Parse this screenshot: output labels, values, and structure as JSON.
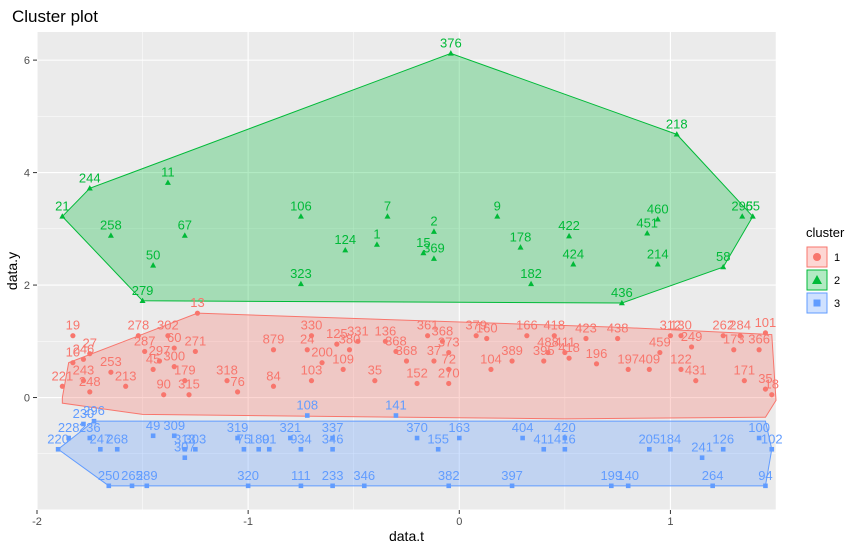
{
  "chart_data": {
    "type": "scatter",
    "title": "Cluster plot",
    "xlabel": "data.t",
    "ylabel": "data.y",
    "xlim": [
      -2.0,
      1.5
    ],
    "ylim": [
      -2.0,
      6.5
    ],
    "x_ticks": [
      -2,
      -1,
      0,
      1
    ],
    "y_ticks": [
      0,
      2,
      4,
      6
    ],
    "grid": true,
    "legend": {
      "title": "cluster",
      "position": "right",
      "entries": [
        "1",
        "2",
        "3"
      ]
    },
    "colors": {
      "1": "#f8766d",
      "2": "#00ba38",
      "3": "#619cff",
      "panel": "#ebebeb",
      "grid": "#ffffff"
    },
    "series": [
      {
        "name": "1",
        "shape": "circle",
        "hull": [
          [
            -1.88,
            0.0
          ],
          [
            -1.85,
            0.62
          ],
          [
            -1.24,
            1.5
          ],
          [
            0.75,
            1.25
          ],
          [
            1.48,
            1.12
          ],
          [
            1.5,
            -0.05
          ],
          [
            1.45,
            -0.35
          ],
          [
            0.5,
            -0.38
          ],
          [
            -1.5,
            -0.3
          ],
          [
            -1.88,
            -0.1
          ]
        ],
        "points": [
          {
            "x": -1.83,
            "y": 1.1,
            "label": "19"
          },
          {
            "x": -1.83,
            "y": 0.62,
            "label": "10"
          },
          {
            "x": -1.75,
            "y": 0.78,
            "label": "27"
          },
          {
            "x": -1.78,
            "y": 0.68,
            "label": "246"
          },
          {
            "x": -1.88,
            "y": 0.2,
            "label": "221"
          },
          {
            "x": -1.78,
            "y": 0.3,
            "label": "243"
          },
          {
            "x": -1.75,
            "y": 0.1,
            "label": "248"
          },
          {
            "x": -1.65,
            "y": 0.45,
            "label": "253"
          },
          {
            "x": -1.58,
            "y": 0.2,
            "label": "213"
          },
          {
            "x": -1.52,
            "y": 1.1,
            "label": "278"
          },
          {
            "x": -1.38,
            "y": 1.1,
            "label": "302"
          },
          {
            "x": -1.24,
            "y": 1.5,
            "label": "13"
          },
          {
            "x": -1.49,
            "y": 0.82,
            "label": "287"
          },
          {
            "x": -1.35,
            "y": 0.88,
            "label": "60"
          },
          {
            "x": -1.45,
            "y": 0.5,
            "label": "45"
          },
          {
            "x": -1.35,
            "y": 0.55,
            "label": "300"
          },
          {
            "x": -1.42,
            "y": 0.65,
            "label": "297"
          },
          {
            "x": -1.25,
            "y": 0.82,
            "label": "271"
          },
          {
            "x": -1.3,
            "y": 0.3,
            "label": "179"
          },
          {
            "x": -1.4,
            "y": 0.05,
            "label": "90"
          },
          {
            "x": -1.28,
            "y": 0.05,
            "label": "315"
          },
          {
            "x": -1.1,
            "y": 0.3,
            "label": "318"
          },
          {
            "x": -1.05,
            "y": 0.1,
            "label": "76"
          },
          {
            "x": -0.88,
            "y": 0.85,
            "label": "879"
          },
          {
            "x": -0.88,
            "y": 0.2,
            "label": "84"
          },
          {
            "x": -0.7,
            "y": 1.1,
            "label": "330"
          },
          {
            "x": -0.72,
            "y": 0.85,
            "label": "24"
          },
          {
            "x": -0.58,
            "y": 0.95,
            "label": "125"
          },
          {
            "x": -0.52,
            "y": 0.85,
            "label": "380"
          },
          {
            "x": -0.48,
            "y": 1.0,
            "label": "331"
          },
          {
            "x": -0.65,
            "y": 0.62,
            "label": "200"
          },
          {
            "x": -0.55,
            "y": 0.5,
            "label": "109"
          },
          {
            "x": -0.7,
            "y": 0.3,
            "label": "103"
          },
          {
            "x": -0.4,
            "y": 0.3,
            "label": "35"
          },
          {
            "x": -0.3,
            "y": 0.82,
            "label": "368"
          },
          {
            "x": -0.35,
            "y": 1.0,
            "label": "136"
          },
          {
            "x": -0.25,
            "y": 0.65,
            "label": "368"
          },
          {
            "x": -0.15,
            "y": 1.1,
            "label": "361"
          },
          {
            "x": -0.08,
            "y": 1.0,
            "label": "368"
          },
          {
            "x": -0.05,
            "y": 0.8,
            "label": "373"
          },
          {
            "x": -0.12,
            "y": 0.65,
            "label": "37"
          },
          {
            "x": -0.05,
            "y": 0.5,
            "label": "72"
          },
          {
            "x": -0.2,
            "y": 0.25,
            "label": "152"
          },
          {
            "x": -0.05,
            "y": 0.25,
            "label": "270"
          },
          {
            "x": 0.08,
            "y": 1.1,
            "label": "379"
          },
          {
            "x": 0.13,
            "y": 1.05,
            "label": "160"
          },
          {
            "x": 0.32,
            "y": 1.1,
            "label": "166"
          },
          {
            "x": 0.15,
            "y": 0.5,
            "label": "104"
          },
          {
            "x": 0.25,
            "y": 0.65,
            "label": "389"
          },
          {
            "x": 0.4,
            "y": 0.65,
            "label": "395"
          },
          {
            "x": 0.42,
            "y": 0.8,
            "label": "488"
          },
          {
            "x": 0.5,
            "y": 0.8,
            "label": "411"
          },
          {
            "x": 0.52,
            "y": 0.7,
            "label": "418"
          },
          {
            "x": 0.45,
            "y": 1.1,
            "label": "418"
          },
          {
            "x": 0.6,
            "y": 1.05,
            "label": "423"
          },
          {
            "x": 0.65,
            "y": 0.6,
            "label": "196"
          },
          {
            "x": 0.75,
            "y": 1.05,
            "label": "438"
          },
          {
            "x": 0.8,
            "y": 0.5,
            "label": "197"
          },
          {
            "x": 0.9,
            "y": 0.5,
            "label": "409"
          },
          {
            "x": 0.95,
            "y": 0.8,
            "label": "459"
          },
          {
            "x": 1.0,
            "y": 1.1,
            "label": "312"
          },
          {
            "x": 1.05,
            "y": 1.1,
            "label": "130"
          },
          {
            "x": 1.1,
            "y": 0.9,
            "label": "249"
          },
          {
            "x": 1.05,
            "y": 0.5,
            "label": "122"
          },
          {
            "x": 1.12,
            "y": 0.3,
            "label": "431"
          },
          {
            "x": 1.25,
            "y": 1.1,
            "label": "262"
          },
          {
            "x": 1.33,
            "y": 1.1,
            "label": "284"
          },
          {
            "x": 1.45,
            "y": 1.15,
            "label": "101"
          },
          {
            "x": 1.3,
            "y": 0.85,
            "label": "173"
          },
          {
            "x": 1.42,
            "y": 0.85,
            "label": "366"
          },
          {
            "x": 1.35,
            "y": 0.3,
            "label": "171"
          },
          {
            "x": 1.45,
            "y": 0.15,
            "label": "35"
          },
          {
            "x": 1.48,
            "y": 0.05,
            "label": "18"
          }
        ]
      },
      {
        "name": "2",
        "shape": "triangle",
        "hull": [
          [
            -1.88,
            3.22
          ],
          [
            -1.75,
            3.72
          ],
          [
            -0.04,
            6.12
          ],
          [
            1.03,
            4.68
          ],
          [
            1.39,
            3.22
          ],
          [
            1.25,
            2.32
          ],
          [
            0.77,
            1.68
          ],
          [
            -1.5,
            1.72
          ]
        ],
        "points": [
          {
            "x": -0.04,
            "y": 6.12,
            "label": "376"
          },
          {
            "x": 1.03,
            "y": 4.68,
            "label": "218"
          },
          {
            "x": -1.75,
            "y": 3.72,
            "label": "244"
          },
          {
            "x": -1.38,
            "y": 3.82,
            "label": "11"
          },
          {
            "x": -1.88,
            "y": 3.22,
            "label": "21"
          },
          {
            "x": -1.65,
            "y": 2.88,
            "label": "258"
          },
          {
            "x": -1.3,
            "y": 2.88,
            "label": "67"
          },
          {
            "x": -1.45,
            "y": 2.35,
            "label": "50"
          },
          {
            "x": -1.5,
            "y": 1.72,
            "label": "279"
          },
          {
            "x": -0.75,
            "y": 3.22,
            "label": "106"
          },
          {
            "x": -0.34,
            "y": 3.22,
            "label": "7"
          },
          {
            "x": -0.54,
            "y": 2.62,
            "label": "124"
          },
          {
            "x": -0.39,
            "y": 2.72,
            "label": "1"
          },
          {
            "x": -0.75,
            "y": 2.02,
            "label": "323"
          },
          {
            "x": -0.17,
            "y": 2.57,
            "label": "15"
          },
          {
            "x": -0.12,
            "y": 2.47,
            "label": "369"
          },
          {
            "x": -0.12,
            "y": 2.95,
            "label": "2"
          },
          {
            "x": 0.18,
            "y": 3.22,
            "label": "9"
          },
          {
            "x": 0.29,
            "y": 2.67,
            "label": "178"
          },
          {
            "x": 0.34,
            "y": 2.02,
            "label": "182"
          },
          {
            "x": 0.52,
            "y": 2.87,
            "label": "422"
          },
          {
            "x": 0.54,
            "y": 2.37,
            "label": "424"
          },
          {
            "x": 0.77,
            "y": 1.68,
            "label": "436"
          },
          {
            "x": 0.94,
            "y": 3.17,
            "label": "460"
          },
          {
            "x": 0.89,
            "y": 2.92,
            "label": "451"
          },
          {
            "x": 0.94,
            "y": 2.37,
            "label": "214"
          },
          {
            "x": 1.25,
            "y": 2.32,
            "label": "58"
          },
          {
            "x": 1.34,
            "y": 3.22,
            "label": "295"
          },
          {
            "x": 1.39,
            "y": 3.22,
            "label": "65"
          }
        ]
      },
      {
        "name": "3",
        "shape": "square",
        "hull": [
          [
            -1.9,
            -0.92
          ],
          [
            -1.66,
            -1.57
          ],
          [
            1.45,
            -1.57
          ],
          [
            1.48,
            -0.92
          ],
          [
            1.45,
            -0.42
          ],
          [
            -1.73,
            -0.42
          ]
        ],
        "points": [
          {
            "x": -1.73,
            "y": -0.42,
            "label": "296"
          },
          {
            "x": -1.78,
            "y": -0.47,
            "label": "230"
          },
          {
            "x": -1.85,
            "y": -0.72,
            "label": "228"
          },
          {
            "x": -1.75,
            "y": -0.72,
            "label": "236"
          },
          {
            "x": -1.9,
            "y": -0.92,
            "label": "220"
          },
          {
            "x": -1.7,
            "y": -0.92,
            "label": "247"
          },
          {
            "x": -1.62,
            "y": -0.92,
            "label": "268"
          },
          {
            "x": -1.66,
            "y": -1.57,
            "label": "250"
          },
          {
            "x": -1.55,
            "y": -1.57,
            "label": "265"
          },
          {
            "x": -1.48,
            "y": -1.57,
            "label": "289"
          },
          {
            "x": -1.45,
            "y": -0.68,
            "label": "49"
          },
          {
            "x": -1.35,
            "y": -0.68,
            "label": "309"
          },
          {
            "x": -1.3,
            "y": -0.92,
            "label": "313"
          },
          {
            "x": -1.25,
            "y": -0.92,
            "label": "303"
          },
          {
            "x": -1.3,
            "y": -1.07,
            "label": "307"
          },
          {
            "x": -1.05,
            "y": -0.72,
            "label": "319"
          },
          {
            "x": -1.02,
            "y": -0.92,
            "label": "75"
          },
          {
            "x": -0.95,
            "y": -0.92,
            "label": "180"
          },
          {
            "x": -1.0,
            "y": -1.57,
            "label": "320"
          },
          {
            "x": -0.8,
            "y": -0.72,
            "label": "321"
          },
          {
            "x": -0.9,
            "y": -0.92,
            "label": "91"
          },
          {
            "x": -0.75,
            "y": -0.92,
            "label": "934"
          },
          {
            "x": -0.75,
            "y": -1.57,
            "label": "111"
          },
          {
            "x": -0.72,
            "y": -0.32,
            "label": "108"
          },
          {
            "x": -0.6,
            "y": -0.72,
            "label": "337"
          },
          {
            "x": -0.6,
            "y": -0.92,
            "label": "346"
          },
          {
            "x": -0.6,
            "y": -1.57,
            "label": "233"
          },
          {
            "x": -0.45,
            "y": -1.57,
            "label": "346"
          },
          {
            "x": -0.3,
            "y": -0.32,
            "label": "141"
          },
          {
            "x": -0.2,
            "y": -0.72,
            "label": "370"
          },
          {
            "x": -0.1,
            "y": -0.92,
            "label": "155"
          },
          {
            "x": 0.0,
            "y": -0.72,
            "label": "163"
          },
          {
            "x": -0.05,
            "y": -1.57,
            "label": "382"
          },
          {
            "x": 0.25,
            "y": -1.57,
            "label": "397"
          },
          {
            "x": 0.3,
            "y": -0.72,
            "label": "404"
          },
          {
            "x": 0.4,
            "y": -0.92,
            "label": "411"
          },
          {
            "x": 0.5,
            "y": -0.92,
            "label": "416"
          },
          {
            "x": 0.5,
            "y": -0.72,
            "label": "420"
          },
          {
            "x": 0.72,
            "y": -1.57,
            "label": "199"
          },
          {
            "x": 0.8,
            "y": -1.57,
            "label": "140"
          },
          {
            "x": 0.9,
            "y": -0.92,
            "label": "205"
          },
          {
            "x": 1.0,
            "y": -0.92,
            "label": "184"
          },
          {
            "x": 1.15,
            "y": -1.07,
            "label": "241"
          },
          {
            "x": 1.2,
            "y": -1.57,
            "label": "264"
          },
          {
            "x": 1.25,
            "y": -0.92,
            "label": "126"
          },
          {
            "x": 1.42,
            "y": -0.72,
            "label": "100"
          },
          {
            "x": 1.45,
            "y": -1.57,
            "label": "94"
          },
          {
            "x": 1.48,
            "y": -0.92,
            "label": "102"
          }
        ]
      }
    ]
  }
}
